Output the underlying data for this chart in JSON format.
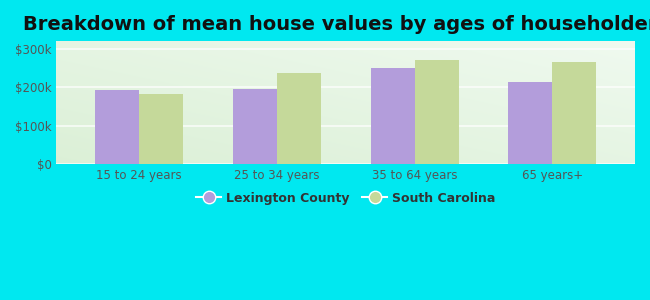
{
  "title": "Breakdown of mean house values by ages of householders",
  "categories": [
    "15 to 24 years",
    "25 to 34 years",
    "35 to 64 years",
    "65 years+"
  ],
  "lexington_values": [
    193000,
    196000,
    250000,
    215000
  ],
  "sc_values": [
    182000,
    238000,
    270000,
    265000
  ],
  "bar_color_lexington": "#b39ddb",
  "bar_color_sc": "#c5d99a",
  "outer_background": "#00e8f0",
  "ylim": [
    0,
    320000
  ],
  "yticks": [
    0,
    100000,
    200000,
    300000
  ],
  "ytick_labels": [
    "$0",
    "$100k",
    "$200k",
    "$300k"
  ],
  "legend_lexington": "Lexington County",
  "legend_sc": "South Carolina",
  "title_fontsize": 14,
  "bar_width": 0.32
}
